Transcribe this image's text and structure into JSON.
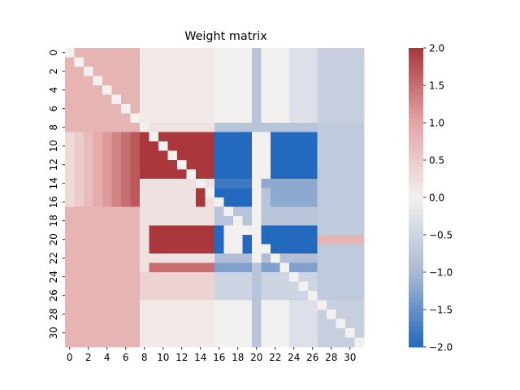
{
  "chart_data": {
    "type": "heatmap",
    "title": "Weight matrix",
    "rows": 32,
    "cols": 32,
    "x_tick_labels": [
      "0",
      "2",
      "4",
      "6",
      "8",
      "10",
      "12",
      "14",
      "16",
      "18",
      "20",
      "22",
      "24",
      "26",
      "28",
      "30"
    ],
    "y_tick_labels": [
      "0",
      "2",
      "4",
      "6",
      "8",
      "10",
      "12",
      "14",
      "16",
      "18",
      "20",
      "22",
      "24",
      "26",
      "28",
      "30"
    ],
    "colorbar": {
      "min": -2.0,
      "max": 2.0,
      "tick_labels": [
        "2.0",
        "1.5",
        "1.0",
        "0.5",
        "0.0",
        "−0.5",
        "−1.0",
        "−1.5",
        "−2.0"
      ],
      "cmap": "vlag",
      "colors": [
        "#2369bd",
        "#a9b9d4",
        "#f3f0f0",
        "#e4a5a5",
        "#a9373b"
      ]
    },
    "diagonal_value": 0,
    "approx_values": {
      "rows_0_7_cols_0_7": 0.8,
      "rows_0_7_cols_8_20": 0.1,
      "col_20_rows_0_31": -0.8,
      "rows_0_7_cols_27_31": -0.6,
      "rows_9_13_cols_8_15": 2.0,
      "rows_9_13_cols_16_26": -2.0,
      "rows_19_21_cols_9_15": 2.0,
      "rows_19_21_cols_16_26": -2.0,
      "rows_24_31_cols_0_7": 0.8,
      "rows_24_31_cols_27_31": -0.6
    }
  }
}
